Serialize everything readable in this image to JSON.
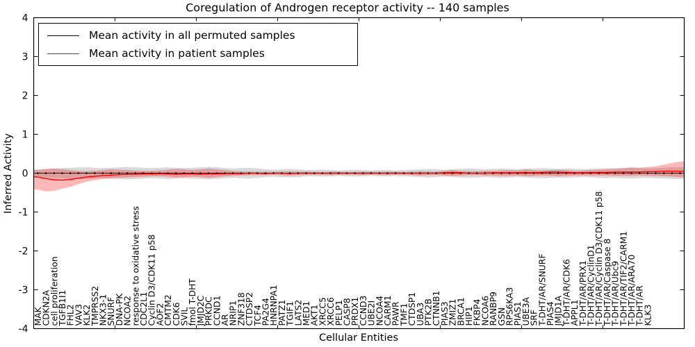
{
  "figure": {
    "background": "#ffffff",
    "frame_color": "#000000"
  },
  "chart_data": {
    "type": "line",
    "title": "Coregulation of Androgen receptor activity -- 140 samples",
    "xlabel": "Cellular Entities",
    "ylabel": "Inferred Activity",
    "ylim": [
      -4,
      4
    ],
    "xlim": [
      0,
      80
    ],
    "xtick_step": 10,
    "yticks": [
      -4,
      -3,
      -2,
      -1,
      0,
      1,
      2,
      3,
      4
    ],
    "grid": false,
    "legend_position": "upper left",
    "categories": [
      "MAK",
      "CDKN2A",
      "cell proliferation",
      "TGFB1I1",
      "FHL2",
      "VAV3",
      "KLK2",
      "TMPRSS2",
      "NKX3-1",
      "SNURF",
      "DNA-PK",
      "NCOA2",
      "response to oxidative stress",
      "CDC2L1",
      "Cyclin D3/CDK11 p58",
      "AOF2",
      "CMTM2",
      "CDK6",
      "SVIL",
      "fmol T-DHT",
      "JMJD2C",
      "PRKDC",
      "CCND1",
      "AR",
      "NRIP1",
      "ZNF318",
      "CTDSP2",
      "TCF4",
      "PA2G4",
      "HNRNPA1",
      "PATZ1",
      "TGIF1",
      "LATS2",
      "MED1",
      "AKT1",
      "XRCC5",
      "XRCC6",
      "PELP1",
      "CASP8",
      "PRDX1",
      "CCND3",
      "UBE2I",
      "NCOA4",
      "CARM1",
      "PAWR",
      "TMF1",
      "CTDSP1",
      "UBA3",
      "PTK2B",
      "CTNNB1",
      "PIAS3",
      "ZMIZ1",
      "BRCA1",
      "HIP1",
      "FKBP4",
      "NCOA6",
      "RANBP9",
      "GSN",
      "RPS6KA3",
      "PIAS1",
      "UBE3A",
      "SRF",
      "T-DHT/AR/SNURF",
      "PIAS4",
      "JMJD1A",
      "T-DHT/AR/CDK6",
      "APPL1",
      "T-DHT/AR/PRX1",
      "T-DHT/AR/CyclinD1",
      "T-DHT/AR/Cyclin D3/CDK11 p58",
      "T-DHT/AR/Caspase 8",
      "T-DHT/AR/Ubc9",
      "T-DHT/AR/TIF2/CARM1",
      "T-DHT/AR/ARA70",
      "T-DHT/AR",
      "KLK3",
      "",
      "",
      "",
      ""
    ],
    "series": [
      {
        "name": "Mean activity in all permuted samples",
        "color": "#000000",
        "band_color": "rgba(0,0,0,0.15)",
        "marker": "dot",
        "values": [
          0,
          0,
          0,
          0,
          0,
          0,
          0,
          0,
          0,
          0,
          0,
          0,
          0,
          0,
          0,
          0,
          0,
          0,
          0,
          0,
          0,
          0,
          0,
          0,
          0,
          0,
          0,
          0,
          0,
          0,
          0,
          0,
          0,
          0,
          0,
          0,
          0,
          0,
          0,
          0,
          0,
          0,
          0,
          0,
          0,
          0,
          0,
          0,
          0,
          0,
          0,
          0,
          0,
          0,
          0,
          0,
          0,
          0,
          0,
          0,
          0,
          0,
          0,
          0,
          0,
          0,
          0,
          0,
          0,
          0,
          0,
          0,
          0,
          0,
          0,
          0,
          0,
          0,
          0,
          0
        ],
        "band_upper": [
          0.1,
          0.11,
          0.12,
          0.13,
          0.14,
          0.15,
          0.15,
          0.14,
          0.13,
          0.14,
          0.15,
          0.16,
          0.15,
          0.14,
          0.13,
          0.14,
          0.15,
          0.14,
          0.13,
          0.14,
          0.15,
          0.16,
          0.15,
          0.13,
          0.12,
          0.13,
          0.14,
          0.12,
          0.1,
          0.09,
          0.1,
          0.11,
          0.1,
          0.08,
          0.08,
          0.09,
          0.08,
          0.07,
          0.08,
          0.09,
          0.08,
          0.07,
          0.08,
          0.08,
          0.07,
          0.08,
          0.09,
          0.1,
          0.11,
          0.1,
          0.09,
          0.1,
          0.11,
          0.12,
          0.11,
          0.1,
          0.11,
          0.12,
          0.11,
          0.1,
          0.11,
          0.12,
          0.13,
          0.12,
          0.11,
          0.12,
          0.11,
          0.1,
          0.11,
          0.12,
          0.13,
          0.12,
          0.13,
          0.14,
          0.13,
          0.12,
          0.13,
          0.14,
          0.15,
          0.15
        ],
        "band_lower": [
          -0.1,
          -0.11,
          -0.12,
          -0.13,
          -0.14,
          -0.15,
          -0.15,
          -0.14,
          -0.13,
          -0.14,
          -0.15,
          -0.16,
          -0.15,
          -0.14,
          -0.13,
          -0.14,
          -0.15,
          -0.14,
          -0.13,
          -0.14,
          -0.15,
          -0.16,
          -0.15,
          -0.13,
          -0.12,
          -0.13,
          -0.14,
          -0.12,
          -0.1,
          -0.09,
          -0.1,
          -0.11,
          -0.1,
          -0.08,
          -0.08,
          -0.09,
          -0.08,
          -0.07,
          -0.08,
          -0.09,
          -0.08,
          -0.07,
          -0.08,
          -0.08,
          -0.07,
          -0.08,
          -0.09,
          -0.1,
          -0.11,
          -0.1,
          -0.09,
          -0.1,
          -0.11,
          -0.12,
          -0.11,
          -0.1,
          -0.11,
          -0.12,
          -0.11,
          -0.1,
          -0.11,
          -0.12,
          -0.13,
          -0.12,
          -0.11,
          -0.12,
          -0.11,
          -0.1,
          -0.11,
          -0.12,
          -0.13,
          -0.12,
          -0.13,
          -0.14,
          -0.13,
          -0.12,
          -0.13,
          -0.14,
          -0.15,
          -0.15
        ]
      },
      {
        "name": "Mean activity in patient samples",
        "color": "#ff0000",
        "band_color": "rgba(255,0,0,0.28)",
        "marker": "none",
        "values": [
          -0.1,
          -0.14,
          -0.17,
          -0.18,
          -0.16,
          -0.13,
          -0.1,
          -0.08,
          -0.06,
          -0.05,
          -0.04,
          -0.03,
          -0.03,
          -0.02,
          -0.02,
          -0.01,
          -0.02,
          -0.03,
          -0.02,
          -0.02,
          -0.03,
          -0.02,
          -0.02,
          -0.01,
          -0.01,
          -0.01,
          0,
          0,
          -0.01,
          0,
          0,
          -0.01,
          0,
          0,
          0,
          0,
          0,
          0,
          0,
          0,
          0,
          0,
          0,
          0,
          0,
          0,
          0,
          0,
          0,
          0,
          0.01,
          0.02,
          0.01,
          0,
          0,
          0,
          0.01,
          0.01,
          0.01,
          0.01,
          0.02,
          0.01,
          0.02,
          0.03,
          0.03,
          0.02,
          0.01,
          0.01,
          0.02,
          0.02,
          0.02,
          0.03,
          0.03,
          0.03,
          0.03,
          0.04,
          0.04,
          0.05,
          0.05,
          0.05
        ],
        "band_upper": [
          0.08,
          0.1,
          0.12,
          0.1,
          0.08,
          0.06,
          0.05,
          0.06,
          0.08,
          0.1,
          0.09,
          0.08,
          0.07,
          0.06,
          0.06,
          0.07,
          0.09,
          0.11,
          0.1,
          0.08,
          0.1,
          0.12,
          0.1,
          0.08,
          0.06,
          0.05,
          0.04,
          0.04,
          0.04,
          0.04,
          0.04,
          0.05,
          0.04,
          0.04,
          0.03,
          0.03,
          0.04,
          0.04,
          0.03,
          0.03,
          0.04,
          0.04,
          0.03,
          0.04,
          0.04,
          0.03,
          0.04,
          0.05,
          0.04,
          0.04,
          0.06,
          0.08,
          0.06,
          0.05,
          0.05,
          0.06,
          0.06,
          0.07,
          0.08,
          0.07,
          0.1,
          0.08,
          0.07,
          0.08,
          0.09,
          0.08,
          0.06,
          0.07,
          0.08,
          0.09,
          0.1,
          0.12,
          0.13,
          0.15,
          0.14,
          0.16,
          0.18,
          0.22,
          0.26,
          0.3
        ],
        "band_lower": [
          -0.42,
          -0.47,
          -0.45,
          -0.4,
          -0.35,
          -0.28,
          -0.22,
          -0.18,
          -0.15,
          -0.13,
          -0.12,
          -0.11,
          -0.1,
          -0.09,
          -0.08,
          -0.08,
          -0.09,
          -0.11,
          -0.1,
          -0.09,
          -0.1,
          -0.12,
          -0.1,
          -0.08,
          -0.07,
          -0.06,
          -0.05,
          -0.05,
          -0.05,
          -0.04,
          -0.05,
          -0.06,
          -0.05,
          -0.04,
          -0.04,
          -0.04,
          -0.05,
          -0.04,
          -0.04,
          -0.04,
          -0.05,
          -0.04,
          -0.04,
          -0.05,
          -0.04,
          -0.04,
          -0.05,
          -0.06,
          -0.05,
          -0.05,
          -0.06,
          -0.07,
          -0.06,
          -0.05,
          -0.05,
          -0.06,
          -0.06,
          -0.07,
          -0.07,
          -0.06,
          -0.08,
          -0.07,
          -0.06,
          -0.07,
          -0.08,
          -0.07,
          -0.06,
          -0.06,
          -0.06,
          -0.06,
          -0.06,
          -0.07,
          -0.07,
          -0.07,
          -0.06,
          -0.07,
          -0.07,
          -0.08,
          -0.09,
          -0.1
        ]
      }
    ]
  }
}
